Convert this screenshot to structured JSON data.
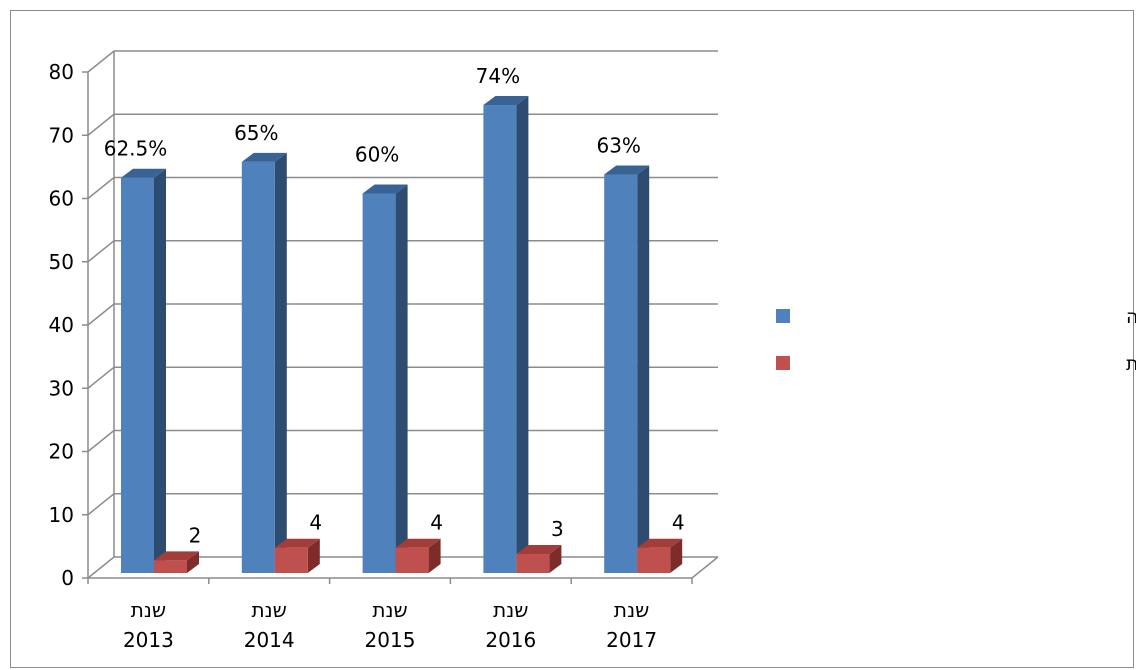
{
  "chart_data": {
    "type": "bar",
    "categories": [
      {
        "line1": "שנת",
        "line2": "2013"
      },
      {
        "line1": "שנת",
        "line2": "2014"
      },
      {
        "line1": "שנת",
        "line2": "2015"
      },
      {
        "line1": "שנת",
        "line2": "2016"
      },
      {
        "line1": "שנת",
        "line2": "2017"
      }
    ],
    "series": [
      {
        "name": "ממוצע אחוז נוכחות חברי מועצה",
        "values": [
          62.5,
          65,
          60,
          74,
          63
        ],
        "labels": [
          "62.5%",
          "65%",
          "60%",
          "74%",
          "63%"
        ],
        "color": "#4F81BD",
        "side_color": "#2E4C70",
        "top_color": "#3A6395"
      },
      {
        "name": "מספר ישיבות",
        "values": [
          2,
          4,
          4,
          3,
          4
        ],
        "labels": [
          "2",
          "4",
          "4",
          "3",
          "4"
        ],
        "color": "#C0504D",
        "side_color": "#7E2C2A",
        "top_color": "#A23D3A"
      }
    ],
    "yticks": [
      "0",
      "10",
      "20",
      "30",
      "40",
      "50",
      "60",
      "70",
      "80"
    ],
    "ylim": [
      0,
      80
    ],
    "grid": true,
    "legend_position": "right",
    "style": "3d-column",
    "title": "",
    "xlabel": "",
    "ylabel": ""
  }
}
